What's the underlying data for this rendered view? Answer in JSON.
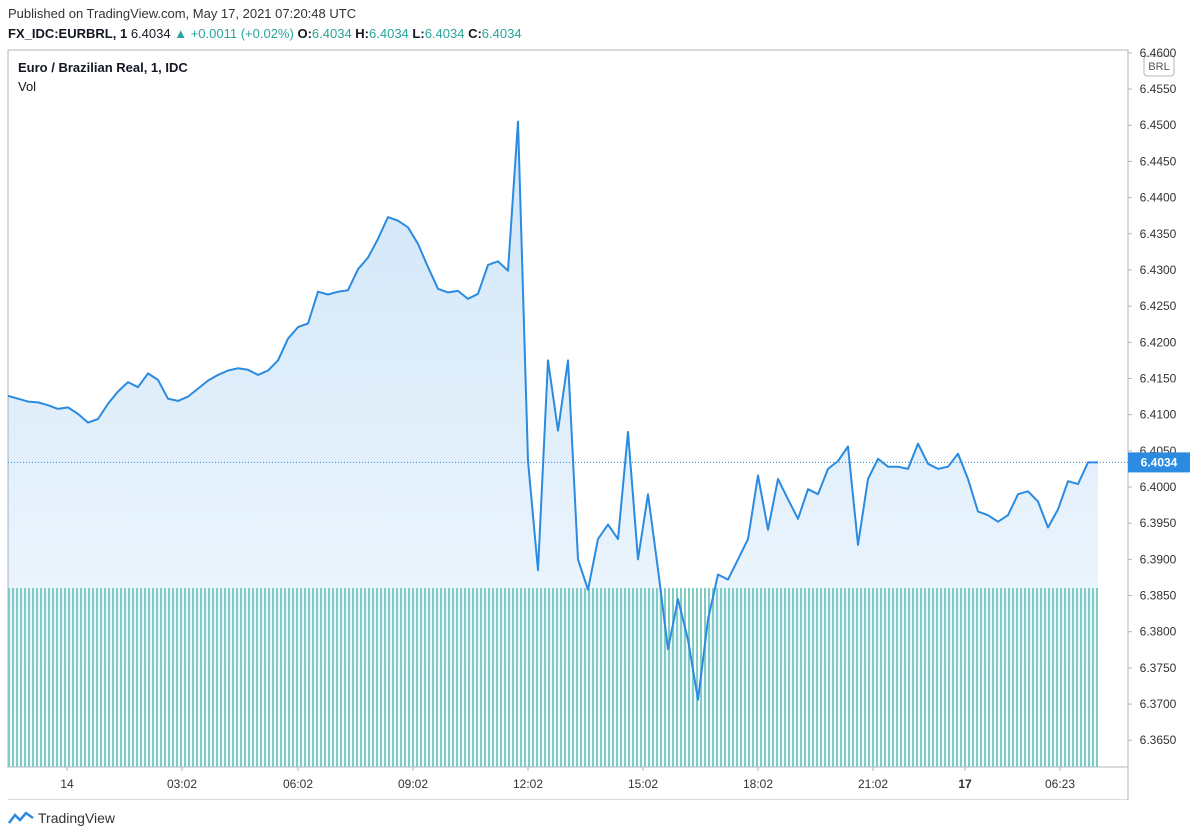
{
  "header": {
    "published": "Published on TradingView.com, May 17, 2021 07:20:48 UTC",
    "symbol": "FX_IDC:EURBRL, 1",
    "last": 6.4034,
    "arrow": "▲",
    "change": "+0.0011 (+0.02%)",
    "ohlc": [
      {
        "label": "O:",
        "value": 6.4034
      },
      {
        "label": "H:",
        "value": 6.4034
      },
      {
        "label": "L:",
        "value": 6.4034
      },
      {
        "label": "C:",
        "value": 6.4034
      }
    ]
  },
  "chart_data": {
    "type": "line",
    "title": "Euro / Brazilian Real, 1, IDC",
    "volume_label": "Vol",
    "currency": "BRL",
    "last_price": 6.4034,
    "series": [
      {
        "name": "Euro / Brazilian Real, 1, IDC",
        "color": "#2a8be0",
        "values": [
          6.4126,
          6.4122,
          6.4118,
          6.4117,
          6.4113,
          6.4108,
          6.411,
          6.4101,
          6.4089,
          6.4094,
          6.4115,
          6.4132,
          6.4145,
          6.4138,
          6.4157,
          6.4148,
          6.4122,
          6.4119,
          6.4125,
          6.4136,
          6.4147,
          6.4155,
          6.4161,
          6.4164,
          6.4162,
          6.4155,
          6.4161,
          6.4175,
          6.4205,
          6.4221,
          6.4226,
          6.427,
          6.4266,
          6.427,
          6.4272,
          6.4301,
          6.4317,
          6.4343,
          6.4373,
          6.4368,
          6.4359,
          6.4336,
          6.4304,
          6.4274,
          6.4269,
          6.4271,
          6.426,
          6.4267,
          6.4307,
          6.4312,
          6.4299,
          6.4505,
          6.4036,
          6.3885,
          6.4175,
          6.4078,
          6.4175,
          6.39,
          6.3858,
          6.3928,
          6.3948,
          6.3928,
          6.4076,
          6.39,
          6.399,
          6.3886,
          6.3776,
          6.3845,
          6.3789,
          6.3706,
          6.3817,
          6.3879,
          6.3872,
          6.39,
          6.3928,
          6.4016,
          6.3941,
          6.4011,
          6.3983,
          6.3956,
          6.3997,
          6.399,
          6.4025,
          6.4036,
          6.4056,
          6.392,
          6.4011,
          6.4039,
          6.4028,
          6.4028,
          6.4025,
          6.406,
          6.4032,
          6.4025,
          6.4028,
          6.4046,
          6.4011,
          6.3966,
          6.3961,
          6.3952,
          6.3961,
          6.399,
          6.3994,
          6.398,
          6.3944,
          6.3969,
          6.4008,
          6.4004,
          6.4034,
          6.4034
        ]
      }
    ],
    "xlim": [
      0,
      112
    ],
    "xticks": [
      {
        "value": 5.9,
        "label": "14"
      },
      {
        "value": 17.4,
        "label": "03:02"
      },
      {
        "value": 29,
        "label": "06:02"
      },
      {
        "value": 40.5,
        "label": "09:02"
      },
      {
        "value": 52,
        "label": "12:02"
      },
      {
        "value": 63.5,
        "label": "15:02"
      },
      {
        "value": 75,
        "label": "18:02"
      },
      {
        "value": 86.5,
        "label": "21:02"
      },
      {
        "value": 95.7,
        "label": "17"
      },
      {
        "value": 105.2,
        "label": "06:23"
      }
    ],
    "ylim": [
      6.3613,
      6.4604
    ],
    "yticks": [
      {
        "value": 6.365,
        "label": "6.3650"
      },
      {
        "value": 6.37,
        "label": "6.3700"
      },
      {
        "value": 6.375,
        "label": "6.3750"
      },
      {
        "value": 6.38,
        "label": "6.3800"
      },
      {
        "value": 6.385,
        "label": "6.3850"
      },
      {
        "value": 6.39,
        "label": "6.3900"
      },
      {
        "value": 6.395,
        "label": "6.3950"
      },
      {
        "value": 6.4,
        "label": "6.4000"
      },
      {
        "value": 6.405,
        "label": "6.4050"
      },
      {
        "value": 6.41,
        "label": "6.4100"
      },
      {
        "value": 6.415,
        "label": "6.4150"
      },
      {
        "value": 6.42,
        "label": "6.4200"
      },
      {
        "value": 6.425,
        "label": "6.4250"
      },
      {
        "value": 6.43,
        "label": "6.4300"
      },
      {
        "value": 6.435,
        "label": "6.4350"
      },
      {
        "value": 6.44,
        "label": "6.4400"
      },
      {
        "value": 6.445,
        "label": "6.4450"
      },
      {
        "value": 6.45,
        "label": "6.4500"
      },
      {
        "value": 6.455,
        "label": "6.4550"
      },
      {
        "value": 6.46,
        "label": "6.4600"
      }
    ]
  },
  "footer": {
    "brand": "TradingView"
  }
}
